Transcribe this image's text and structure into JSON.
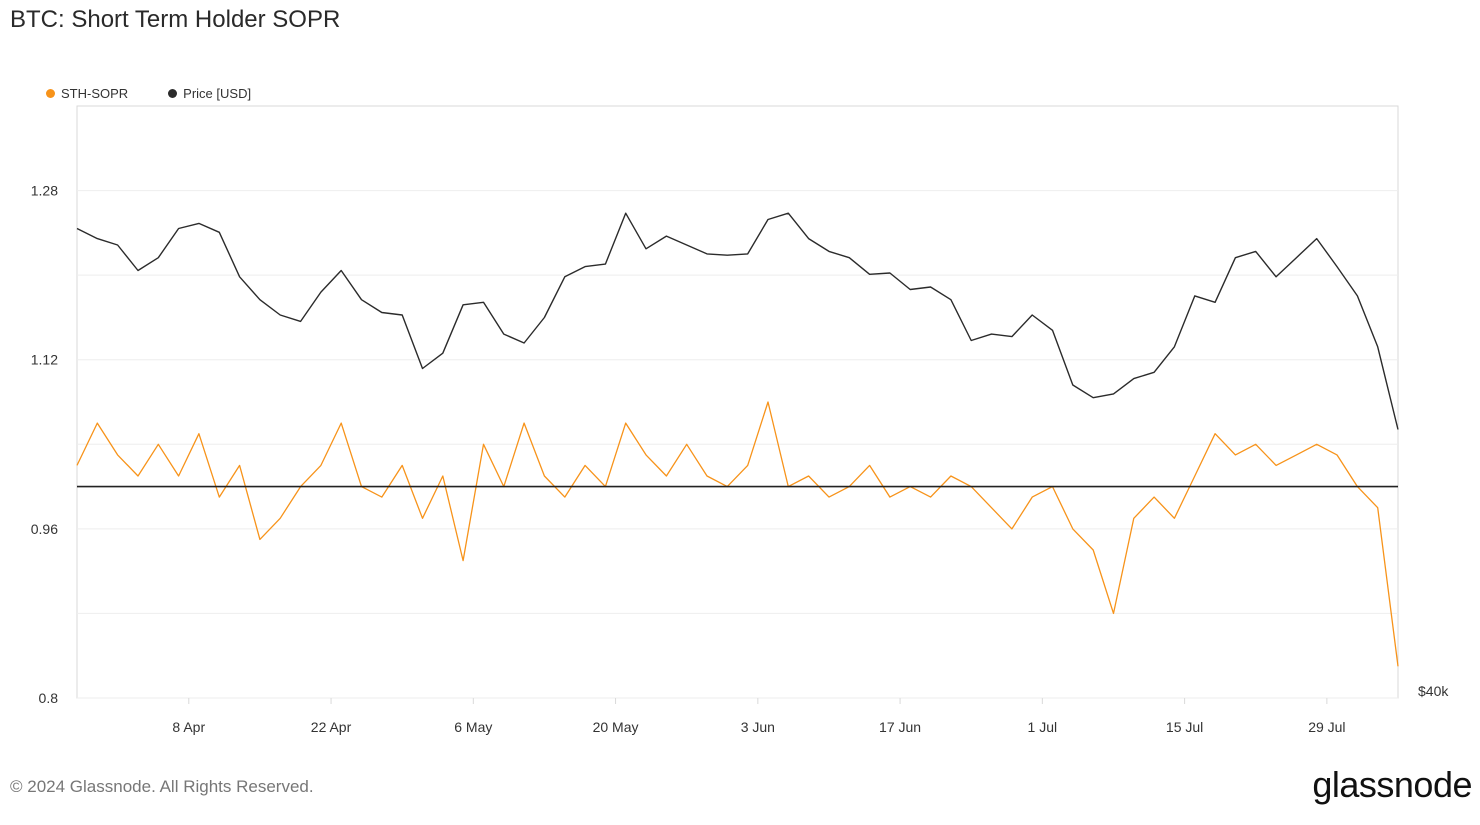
{
  "title": "BTC: Short Term Holder SOPR",
  "legend": {
    "sopr": "STH-SOPR",
    "price": "Price [USD]"
  },
  "footer": "© 2024 Glassnode. All Rights Reserved.",
  "brand": "glassnode",
  "colors": {
    "sopr": "#f7931a",
    "price": "#2b2b2b",
    "baseline": "#222222",
    "grid": "#eeeeee",
    "axis": "#d9d9d9"
  },
  "chart_data": {
    "type": "line",
    "grid": true,
    "legend_position": "top-left",
    "left_axis": {
      "ticks": [
        "0.8",
        "0.96",
        "1.12",
        "1.28"
      ],
      "ylim": [
        0.8,
        1.36
      ]
    },
    "right_axis": {
      "ticks": [
        "$40k"
      ]
    },
    "x_ticks": [
      "8 Apr",
      "22 Apr",
      "6 May",
      "20 May",
      "3 Jun",
      "17 Jun",
      "1 Jul",
      "15 Jul",
      "29 Jul"
    ],
    "x_range": [
      "2024-03-28",
      "2024-08-05"
    ],
    "baseline": 1.0,
    "series": [
      {
        "name": "STH-SOPR",
        "x": [
          "2024-03-28",
          "2024-03-30",
          "2024-04-01",
          "2024-04-03",
          "2024-04-05",
          "2024-04-07",
          "2024-04-09",
          "2024-04-11",
          "2024-04-13",
          "2024-04-15",
          "2024-04-17",
          "2024-04-19",
          "2024-04-21",
          "2024-04-23",
          "2024-04-25",
          "2024-04-27",
          "2024-04-29",
          "2024-05-01",
          "2024-05-03",
          "2024-05-05",
          "2024-05-07",
          "2024-05-09",
          "2024-05-11",
          "2024-05-13",
          "2024-05-15",
          "2024-05-17",
          "2024-05-19",
          "2024-05-21",
          "2024-05-23",
          "2024-05-25",
          "2024-05-27",
          "2024-05-29",
          "2024-05-31",
          "2024-06-02",
          "2024-06-04",
          "2024-06-06",
          "2024-06-08",
          "2024-06-10",
          "2024-06-12",
          "2024-06-14",
          "2024-06-16",
          "2024-06-18",
          "2024-06-20",
          "2024-06-22",
          "2024-06-24",
          "2024-06-26",
          "2024-06-28",
          "2024-06-30",
          "2024-07-02",
          "2024-07-04",
          "2024-07-06",
          "2024-07-08",
          "2024-07-10",
          "2024-07-12",
          "2024-07-14",
          "2024-07-16",
          "2024-07-18",
          "2024-07-20",
          "2024-07-22",
          "2024-07-24",
          "2024-07-26",
          "2024-07-28",
          "2024-07-30",
          "2024-08-01",
          "2024-08-03",
          "2024-08-05"
        ],
        "values": [
          1.02,
          1.06,
          1.03,
          1.01,
          1.04,
          1.01,
          1.05,
          0.99,
          1.02,
          0.95,
          0.97,
          1.0,
          1.02,
          1.06,
          1.0,
          0.99,
          1.02,
          0.97,
          1.01,
          0.93,
          1.04,
          1.0,
          1.06,
          1.01,
          0.99,
          1.02,
          1.0,
          1.06,
          1.03,
          1.01,
          1.04,
          1.01,
          1.0,
          1.02,
          1.08,
          1.0,
          1.01,
          0.99,
          1.0,
          1.02,
          0.99,
          1.0,
          0.99,
          1.01,
          1.0,
          0.98,
          0.96,
          0.99,
          1.0,
          0.96,
          0.94,
          0.88,
          0.97,
          0.99,
          0.97,
          1.01,
          1.05,
          1.03,
          1.04,
          1.02,
          1.03,
          1.04,
          1.03,
          1.0,
          0.98,
          0.83
        ]
      },
      {
        "name": "Price [USD]",
        "x": [
          "2024-03-28",
          "2024-03-30",
          "2024-04-01",
          "2024-04-03",
          "2024-04-05",
          "2024-04-07",
          "2024-04-09",
          "2024-04-11",
          "2024-04-13",
          "2024-04-15",
          "2024-04-17",
          "2024-04-19",
          "2024-04-21",
          "2024-04-23",
          "2024-04-25",
          "2024-04-27",
          "2024-04-29",
          "2024-05-01",
          "2024-05-03",
          "2024-05-05",
          "2024-05-07",
          "2024-05-09",
          "2024-05-11",
          "2024-05-13",
          "2024-05-15",
          "2024-05-17",
          "2024-05-19",
          "2024-05-21",
          "2024-05-23",
          "2024-05-25",
          "2024-05-27",
          "2024-05-29",
          "2024-05-31",
          "2024-06-02",
          "2024-06-04",
          "2024-06-06",
          "2024-06-08",
          "2024-06-10",
          "2024-06-12",
          "2024-06-14",
          "2024-06-16",
          "2024-06-18",
          "2024-06-20",
          "2024-06-22",
          "2024-06-24",
          "2024-06-26",
          "2024-06-28",
          "2024-06-30",
          "2024-07-02",
          "2024-07-04",
          "2024-07-06",
          "2024-07-08",
          "2024-07-10",
          "2024-07-12",
          "2024-07-14",
          "2024-07-16",
          "2024-07-18",
          "2024-07-20",
          "2024-07-22",
          "2024-07-24",
          "2024-07-26",
          "2024-07-28",
          "2024-07-30",
          "2024-08-01",
          "2024-08-03",
          "2024-08-05"
        ],
        "values": [
          69800,
          69000,
          68500,
          66500,
          67500,
          69800,
          70200,
          69500,
          66000,
          64200,
          63000,
          62500,
          64800,
          66500,
          64200,
          63200,
          63000,
          58800,
          60000,
          63800,
          64000,
          61500,
          60800,
          62800,
          66000,
          66800,
          67000,
          71000,
          68200,
          69200,
          68500,
          67800,
          67700,
          67800,
          70500,
          71000,
          69000,
          68000,
          67500,
          66200,
          66300,
          65000,
          65200,
          64200,
          61000,
          61500,
          61300,
          63000,
          61800,
          57500,
          56500,
          56800,
          58000,
          58500,
          60500,
          64500,
          64000,
          67500,
          68000,
          66000,
          67500,
          69000,
          66800,
          64500,
          60500,
          54000
        ]
      }
    ]
  }
}
